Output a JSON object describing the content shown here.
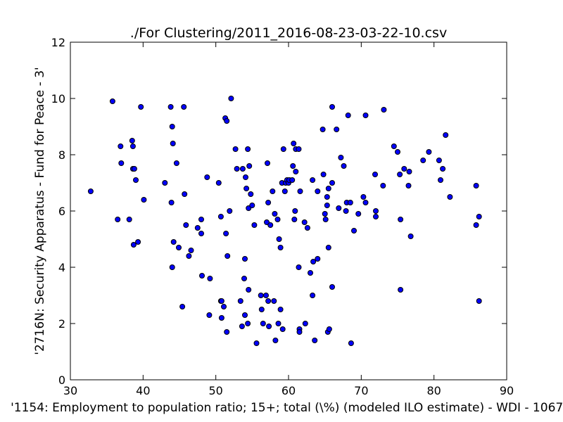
{
  "chart_data": {
    "type": "scatter",
    "title": "./For Clustering/2011_2016-08-23-03-22-10.csv",
    "xlabel": "'1154: Employment to population ratio; 15+; total (\\%)  (modeled ILO estimate) - WDI - 1067'",
    "ylabel": "'2716N: Security Apparatus - Fund for Peace - 3'",
    "xlim": [
      30,
      90
    ],
    "ylim": [
      0,
      12
    ],
    "xticks": [
      "30",
      "40",
      "50",
      "60",
      "70",
      "80",
      "90"
    ],
    "yticks": [
      "0",
      "2",
      "4",
      "6",
      "8",
      "10",
      "12"
    ],
    "grid": false,
    "marker_color": "#0000ff",
    "marker_edge_color": "#000000",
    "points": [
      [
        32.8,
        6.7
      ],
      [
        35.8,
        9.9
      ],
      [
        36.5,
        5.7
      ],
      [
        36.9,
        8.3
      ],
      [
        37.0,
        7.7
      ],
      [
        38.1,
        5.7
      ],
      [
        38.5,
        8.5
      ],
      [
        38.6,
        8.3
      ],
      [
        38.6,
        7.5
      ],
      [
        38.8,
        7.5
      ],
      [
        38.7,
        4.8
      ],
      [
        39.0,
        7.1
      ],
      [
        39.3,
        4.9
      ],
      [
        39.7,
        9.7
      ],
      [
        40.1,
        6.4
      ],
      [
        43.0,
        7.0
      ],
      [
        43.8,
        9.7
      ],
      [
        44.0,
        9.0
      ],
      [
        44.1,
        8.4
      ],
      [
        43.9,
        6.3
      ],
      [
        44.2,
        4.9
      ],
      [
        44.0,
        4.0
      ],
      [
        44.6,
        7.7
      ],
      [
        44.9,
        4.7
      ],
      [
        45.4,
        2.6
      ],
      [
        45.6,
        9.7
      ],
      [
        45.7,
        6.6
      ],
      [
        45.9,
        5.5
      ],
      [
        46.3,
        4.4
      ],
      [
        46.6,
        4.6
      ],
      [
        47.5,
        5.4
      ],
      [
        48.0,
        5.7
      ],
      [
        48.0,
        5.2
      ],
      [
        48.1,
        3.7
      ],
      [
        48.8,
        7.2
      ],
      [
        49.2,
        3.6
      ],
      [
        49.1,
        2.3
      ],
      [
        50.4,
        7.0
      ],
      [
        50.7,
        5.8
      ],
      [
        50.7,
        2.8
      ],
      [
        50.8,
        2.8
      ],
      [
        50.8,
        2.2
      ],
      [
        51.1,
        2.6
      ],
      [
        51.3,
        9.3
      ],
      [
        51.5,
        9.2
      ],
      [
        51.4,
        5.2
      ],
      [
        51.6,
        4.4
      ],
      [
        51.5,
        1.7
      ],
      [
        51.9,
        6.0
      ],
      [
        52.1,
        10.0
      ],
      [
        52.7,
        8.2
      ],
      [
        52.9,
        7.5
      ],
      [
        53.4,
        2.8
      ],
      [
        53.7,
        7.5
      ],
      [
        53.6,
        1.9
      ],
      [
        53.9,
        3.6
      ],
      [
        54.0,
        2.3
      ],
      [
        54.0,
        4.3
      ],
      [
        54.1,
        7.2
      ],
      [
        54.2,
        6.8
      ],
      [
        54.4,
        8.2
      ],
      [
        54.4,
        2.0
      ],
      [
        54.5,
        3.2
      ],
      [
        54.5,
        6.1
      ],
      [
        54.6,
        7.6
      ],
      [
        54.8,
        6.6
      ],
      [
        55.0,
        6.2
      ],
      [
        55.3,
        5.5
      ],
      [
        55.6,
        1.3
      ],
      [
        56.2,
        3.0
      ],
      [
        56.3,
        2.5
      ],
      [
        56.5,
        2.0
      ],
      [
        56.9,
        3.0
      ],
      [
        57.0,
        5.6
      ],
      [
        57.1,
        7.7
      ],
      [
        57.2,
        6.3
      ],
      [
        57.2,
        2.8
      ],
      [
        57.3,
        1.9
      ],
      [
        57.5,
        5.5
      ],
      [
        57.8,
        6.7
      ],
      [
        58.0,
        2.8
      ],
      [
        58.1,
        5.9
      ],
      [
        58.2,
        1.4
      ],
      [
        58.5,
        5.7
      ],
      [
        58.6,
        2.0
      ],
      [
        58.7,
        5.0
      ],
      [
        58.9,
        4.7
      ],
      [
        58.9,
        2.5
      ],
      [
        59.1,
        7.0
      ],
      [
        59.2,
        1.8
      ],
      [
        59.3,
        8.2
      ],
      [
        59.5,
        6.7
      ],
      [
        59.6,
        7.0
      ],
      [
        59.8,
        7.1
      ],
      [
        60.0,
        7.0
      ],
      [
        60.1,
        7.1
      ],
      [
        60.5,
        7.1
      ],
      [
        60.6,
        7.6
      ],
      [
        60.7,
        8.4
      ],
      [
        60.8,
        5.7
      ],
      [
        60.9,
        6.0
      ],
      [
        61.0,
        8.2
      ],
      [
        61.0,
        7.4
      ],
      [
        61.4,
        8.2
      ],
      [
        61.4,
        4.0
      ],
      [
        61.5,
        1.8
      ],
      [
        61.6,
        6.7
      ],
      [
        61.5,
        1.7
      ],
      [
        62.2,
        5.6
      ],
      [
        62.3,
        2.0
      ],
      [
        62.6,
        5.4
      ],
      [
        63.0,
        3.8
      ],
      [
        63.3,
        3.0
      ],
      [
        63.3,
        7.1
      ],
      [
        63.4,
        4.2
      ],
      [
        63.6,
        1.4
      ],
      [
        64.0,
        4.3
      ],
      [
        64.0,
        6.7
      ],
      [
        64.7,
        8.9
      ],
      [
        64.8,
        7.3
      ],
      [
        65.0,
        5.9
      ],
      [
        65.1,
        5.7
      ],
      [
        65.3,
        6.5
      ],
      [
        65.3,
        6.2
      ],
      [
        65.4,
        1.7
      ],
      [
        65.5,
        4.7
      ],
      [
        65.6,
        1.8
      ],
      [
        65.5,
        6.8
      ],
      [
        66.0,
        9.7
      ],
      [
        66.0,
        7.0
      ],
      [
        66.0,
        3.3
      ],
      [
        66.6,
        8.9
      ],
      [
        66.9,
        6.1
      ],
      [
        67.2,
        7.9
      ],
      [
        67.6,
        7.6
      ],
      [
        67.9,
        6.0
      ],
      [
        68.0,
        6.3
      ],
      [
        68.2,
        9.4
      ],
      [
        68.5,
        6.3
      ],
      [
        68.6,
        1.3
      ],
      [
        69.0,
        5.3
      ],
      [
        69.6,
        5.9
      ],
      [
        70.3,
        6.5
      ],
      [
        70.6,
        6.3
      ],
      [
        70.6,
        9.4
      ],
      [
        71.9,
        7.3
      ],
      [
        72.0,
        6.0
      ],
      [
        72.0,
        5.8
      ],
      [
        73.0,
        6.9
      ],
      [
        73.1,
        9.6
      ],
      [
        74.5,
        8.3
      ],
      [
        75.0,
        8.1
      ],
      [
        75.3,
        7.3
      ],
      [
        75.4,
        5.7
      ],
      [
        75.4,
        3.2
      ],
      [
        75.9,
        7.5
      ],
      [
        76.5,
        6.9
      ],
      [
        76.6,
        7.4
      ],
      [
        76.8,
        5.1
      ],
      [
        78.5,
        7.8
      ],
      [
        79.3,
        8.1
      ],
      [
        80.7,
        7.8
      ],
      [
        80.9,
        7.1
      ],
      [
        81.2,
        7.5
      ],
      [
        81.6,
        8.7
      ],
      [
        82.2,
        6.5
      ],
      [
        85.8,
        6.9
      ],
      [
        85.8,
        5.5
      ],
      [
        86.2,
        5.8
      ],
      [
        86.2,
        2.8
      ]
    ]
  }
}
